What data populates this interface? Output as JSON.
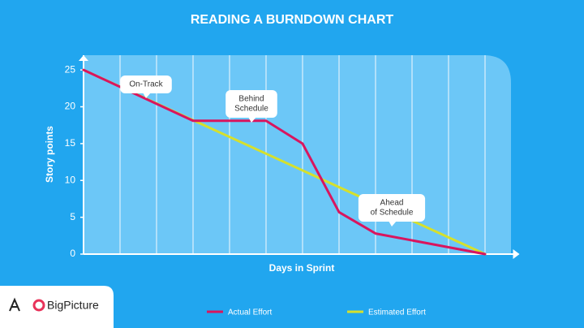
{
  "chart_data": {
    "type": "line",
    "title": "READING A BURNDOWN CHART",
    "x_label": "Days in Sprint",
    "y_label": "Story points",
    "xlim": [
      0,
      11.7
    ],
    "xticks": [
      0,
      1,
      2,
      3,
      4,
      5,
      6,
      7,
      8,
      9,
      10,
      11
    ],
    "ylim": [
      0,
      27
    ],
    "yticks": [
      0,
      5,
      10,
      15,
      20,
      25
    ],
    "grid": true,
    "series": [
      {
        "name": "Estimated Effort",
        "color": "#d6e02c",
        "x": [
          0,
          11
        ],
        "values": [
          25,
          0
        ]
      },
      {
        "name": "Actual Effort",
        "color": "#d9155e",
        "x": [
          0,
          3,
          5,
          6,
          7,
          8,
          11
        ],
        "values": [
          25,
          18.1,
          18.1,
          15,
          5.7,
          2.8,
          0
        ]
      }
    ],
    "annotations": [
      {
        "lines": [
          "On-Track"
        ]
      },
      {
        "lines": [
          "Behind",
          "Schedule"
        ]
      },
      {
        "lines": [
          "Ahead",
          "of Schedule"
        ]
      }
    ],
    "legend": "bottom",
    "logo": "BigPicture"
  }
}
